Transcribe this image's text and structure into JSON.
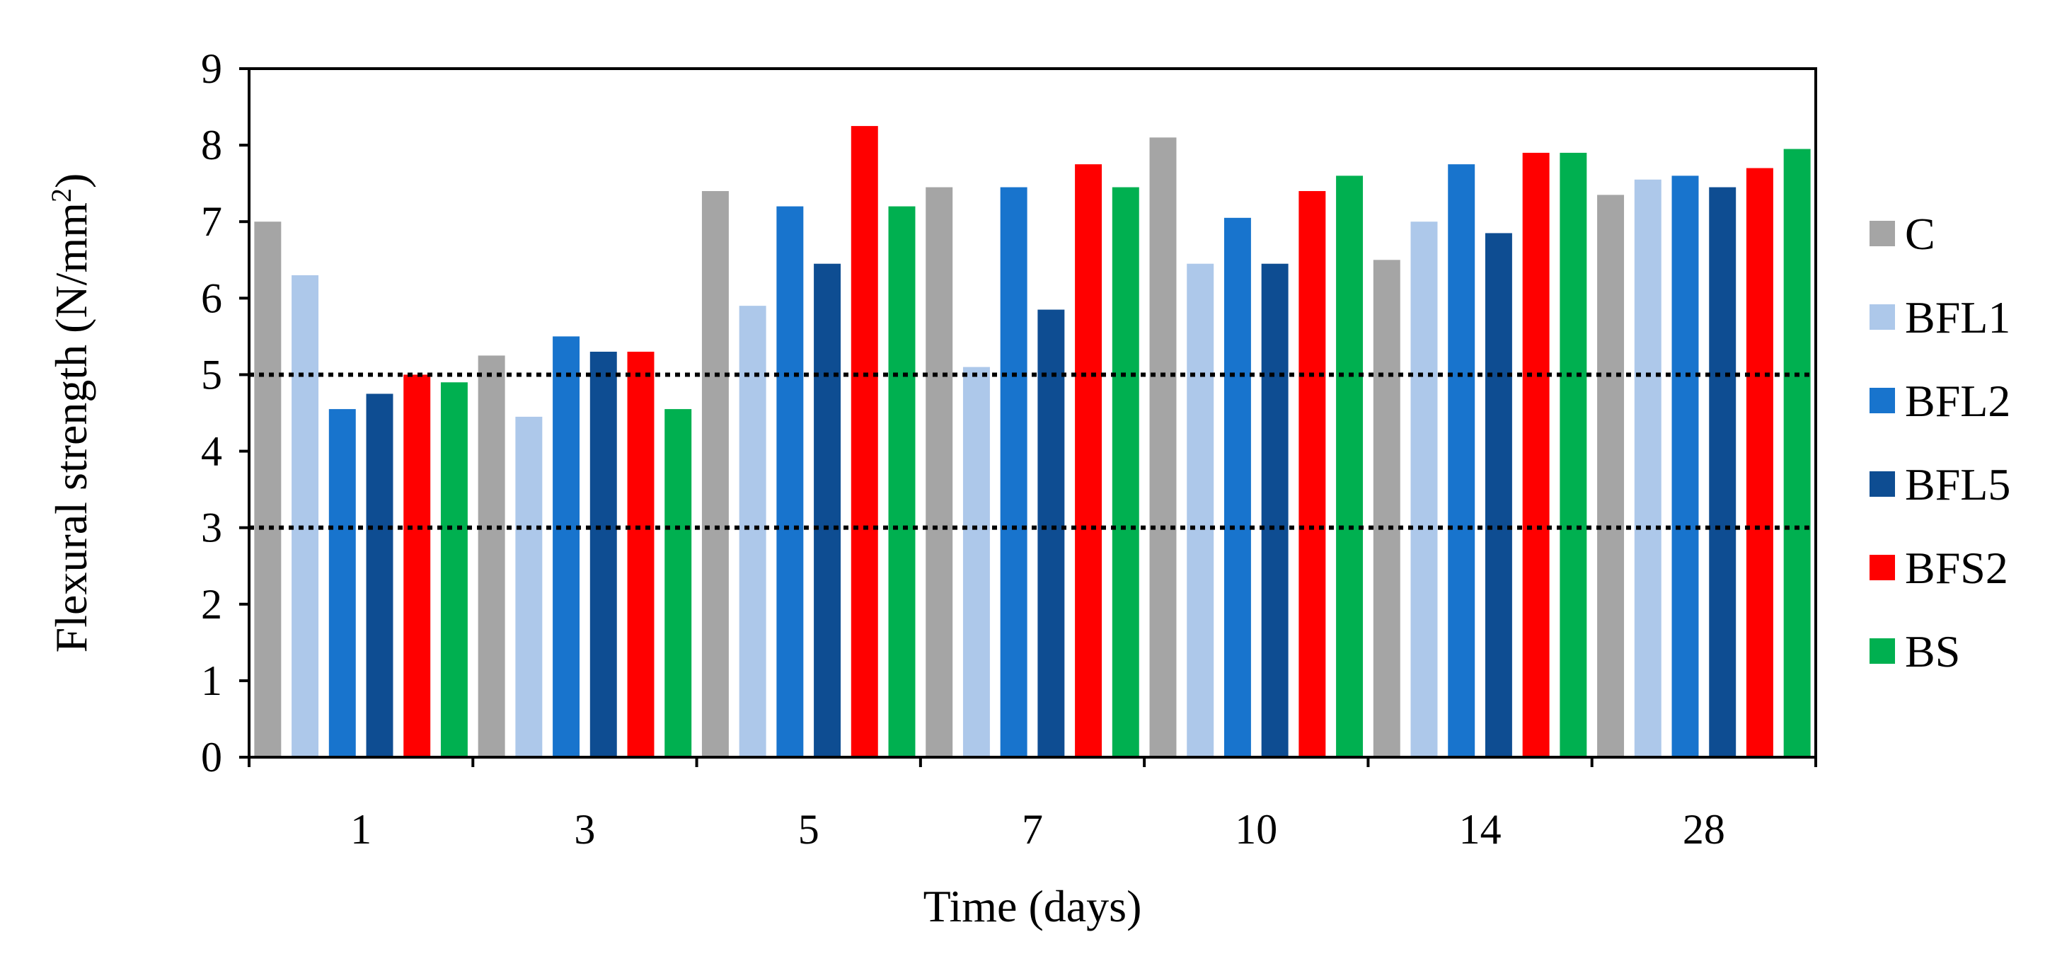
{
  "chart_data": {
    "type": "bar",
    "xlabel": "Time (days)",
    "ylabel": "Flexural strength (N/mm²)",
    "ylabel_parts": {
      "main": "Flexural strength (N/mm",
      "superscript": "2",
      "close": ")"
    },
    "ylim": [
      0,
      9
    ],
    "yticks": [
      "0",
      "1",
      "2",
      "3",
      "4",
      "5",
      "6",
      "7",
      "8",
      "9"
    ],
    "categories": [
      "1",
      "3",
      "5",
      "7",
      "10",
      "14",
      "28"
    ],
    "legend_position": "right",
    "grid": false,
    "reference_lines": [
      3,
      5
    ],
    "series": [
      {
        "name": "C",
        "color": "#a5a5a5",
        "values": [
          7.0,
          5.25,
          7.4,
          7.45,
          8.1,
          6.5,
          7.35
        ]
      },
      {
        "name": "BFL1",
        "color": "#adc8ea",
        "values": [
          6.3,
          4.45,
          5.9,
          5.1,
          6.45,
          7.0,
          7.55
        ]
      },
      {
        "name": "BFL2",
        "color": "#1874cd",
        "values": [
          4.55,
          5.5,
          7.2,
          7.45,
          7.05,
          7.75,
          7.6
        ]
      },
      {
        "name": "BFL5",
        "color": "#0e4d92",
        "values": [
          4.75,
          5.3,
          6.45,
          5.85,
          6.45,
          6.85,
          7.45
        ]
      },
      {
        "name": "BFS2",
        "color": "#ff0000",
        "values": [
          5.0,
          5.3,
          8.25,
          7.75,
          7.4,
          7.9,
          7.7
        ]
      },
      {
        "name": "BS",
        "color": "#00b050",
        "values": [
          4.9,
          4.55,
          7.2,
          7.45,
          7.6,
          7.9,
          7.95
        ]
      }
    ]
  }
}
